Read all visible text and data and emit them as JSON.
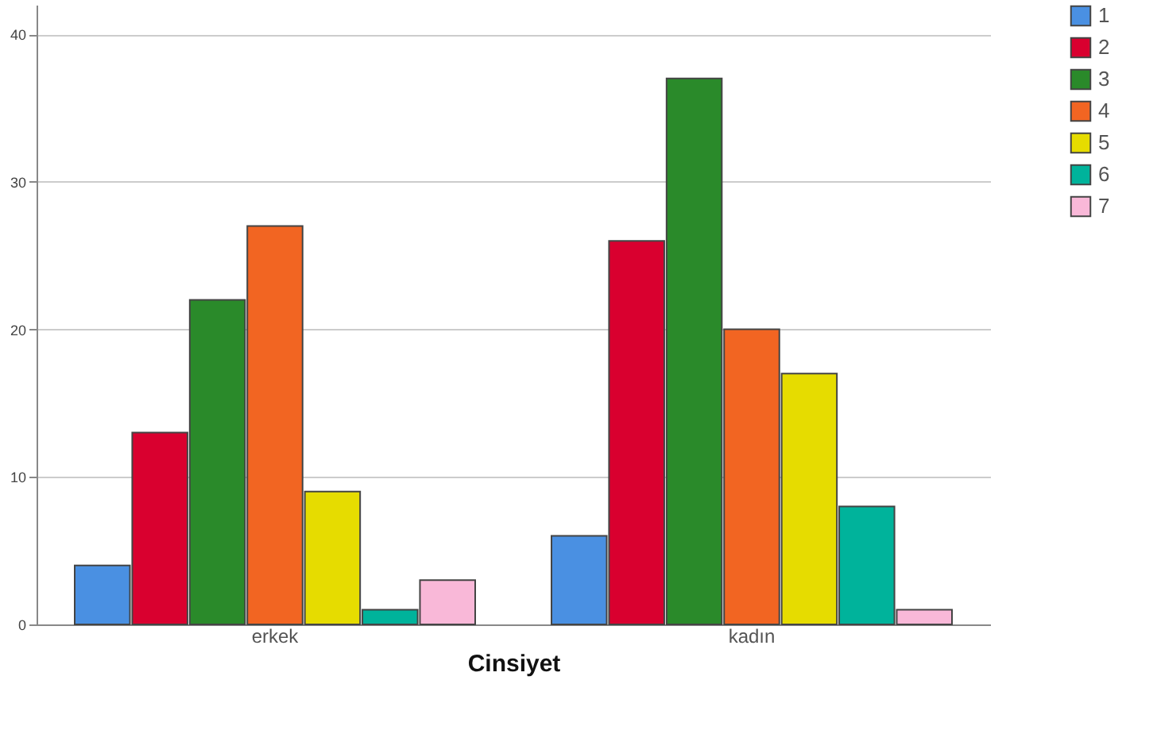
{
  "chart_data": {
    "type": "bar",
    "xlabel": "Cinsiyet",
    "categories": [
      "erkek",
      "kadın"
    ],
    "series": [
      {
        "name": "1",
        "color": "#4a90e2",
        "values": [
          4,
          6
        ]
      },
      {
        "name": "2",
        "color": "#d9002f",
        "values": [
          13,
          26
        ]
      },
      {
        "name": "3",
        "color": "#2a8a2a",
        "values": [
          22,
          37
        ]
      },
      {
        "name": "4",
        "color": "#f26522",
        "values": [
          27,
          20
        ]
      },
      {
        "name": "5",
        "color": "#e6dc00",
        "values": [
          9,
          17
        ]
      },
      {
        "name": "6",
        "color": "#00b39b",
        "values": [
          1,
          8
        ]
      },
      {
        "name": "7",
        "color": "#f9b8d8",
        "values": [
          3,
          1
        ]
      }
    ],
    "ylim": [
      0,
      42
    ],
    "yticks": [
      0,
      10,
      20,
      30,
      40
    ],
    "grid": "y",
    "legend": "right"
  }
}
